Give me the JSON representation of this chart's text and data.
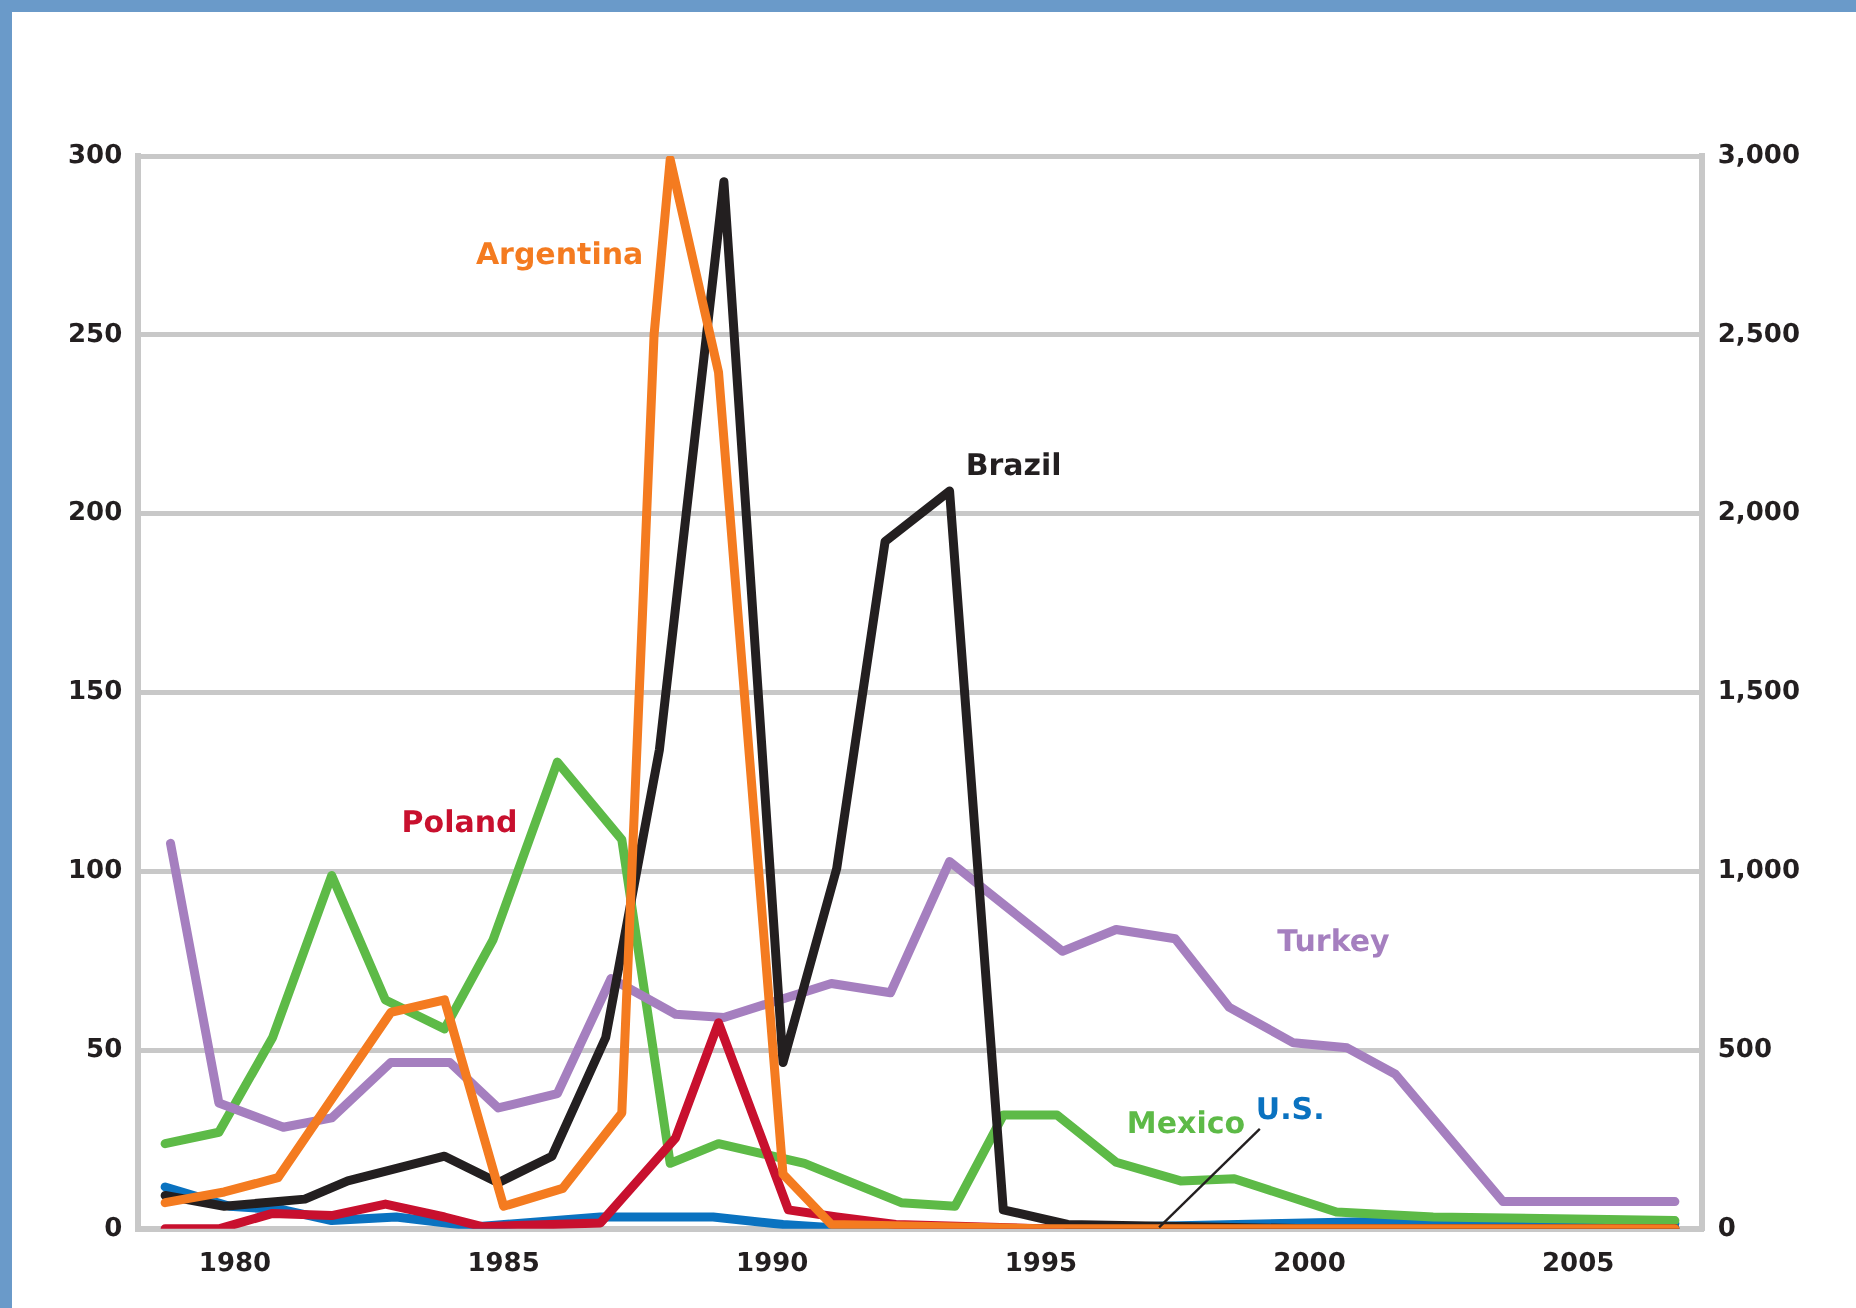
{
  "chart_data": {
    "type": "line",
    "xlim": [
      1978.2,
      2007.3
    ],
    "xticks": [
      1980,
      1985,
      1990,
      1995,
      2000,
      2005
    ],
    "ylim": [
      0,
      300
    ],
    "yticks": [
      0,
      50,
      100,
      150,
      200,
      250,
      300
    ],
    "y2lim": [
      0,
      3000
    ],
    "y2ticks": [
      0,
      {
        "value": 500,
        "label": "500"
      },
      {
        "value": 1000,
        "label": "1,000"
      },
      {
        "value": 1500,
        "label": "1,500"
      },
      {
        "value": 2000,
        "label": "2,000"
      },
      {
        "value": 2500,
        "label": "2,500"
      },
      {
        "value": 3000,
        "label": "3,000"
      }
    ],
    "grid": "y",
    "legend": false,
    "marker": "none",
    "series": [
      {
        "name": "Argentina",
        "color": "#f47b20",
        "axis": "y2",
        "x": [
          1978.7,
          1979.8,
          1980.8,
          1982.9,
          1983.9,
          1985.0,
          1986.1,
          1987.2,
          1987.8,
          1988.1,
          1989.0,
          1990.2,
          1991.1,
          1995.0,
          2000.0,
          2006.8
        ],
        "values": [
          73,
          103,
          143,
          605,
          640,
          63,
          113,
          324,
          2500,
          2990,
          2395,
          153,
          12,
          0,
          0,
          0
        ]
      },
      {
        "name": "Brazil",
        "color": "#231f20",
        "axis": "y2",
        "x": [
          1978.7,
          1979.8,
          1981.3,
          1982.1,
          1983.9,
          1984.9,
          1985.9,
          1986.9,
          1987.9,
          1989.1,
          1990.2,
          1991.2,
          1992.1,
          1993.3,
          1994.3,
          1995.5,
          2000.0,
          2006.8
        ],
        "values": [
          93,
          63,
          83,
          134,
          203,
          129,
          203,
          535,
          1340,
          2928,
          465,
          1008,
          1922,
          2063,
          53,
          12,
          0,
          0
        ]
      },
      {
        "name": "Poland",
        "color": "#c8102e",
        "axis": "y2",
        "x": [
          1978.7,
          1979.7,
          1980.7,
          1981.8,
          1982.8,
          1983.9,
          1984.6,
          1986.8,
          1988.2,
          1989.0,
          1990.3,
          1991.2,
          1992.3,
          1995.0,
          2000.0,
          2006.8
        ],
        "values": [
          0,
          0,
          43,
          37,
          69,
          33,
          6,
          16,
          254,
          576,
          53,
          33,
          12,
          0,
          0,
          0
        ]
      },
      {
        "name": "Turkey",
        "color": "#a57fbf",
        "x": [
          1978.8,
          1979.7,
          1980.9,
          1981.8,
          1982.9,
          1984.0,
          1984.9,
          1986.0,
          1987.0,
          1988.2,
          1989.1,
          1991.1,
          1992.2,
          1993.3,
          1995.4,
          1996.4,
          1997.5,
          1998.5,
          1999.7,
          2000.7,
          2001.6,
          2003.6,
          2006.8
        ],
        "values": [
          107.8,
          35.2,
          28.4,
          31,
          46.5,
          46.5,
          33.8,
          37.8,
          70,
          60,
          59.1,
          68.6,
          66,
          102.7,
          77.6,
          83.7,
          81.1,
          62,
          52,
          50.6,
          43.2,
          7.6,
          7.6
        ]
      },
      {
        "name": "Mexico",
        "color": "#5dba47",
        "x": [
          1978.7,
          1979.7,
          1980.7,
          1981.8,
          1982.8,
          1983.9,
          1984.8,
          1986.0,
          1987.2,
          1988.1,
          1989.0,
          1990.6,
          1992.4,
          1993.4,
          1994.3,
          1995.3,
          1996.4,
          1997.6,
          1998.6,
          2000.5,
          2002.3,
          2006.8
        ],
        "values": [
          23.8,
          27,
          53.5,
          98.8,
          64,
          55.9,
          80.7,
          130.5,
          108.8,
          18.3,
          23.8,
          18.3,
          7.3,
          6.3,
          31.8,
          31.8,
          18.6,
          13.4,
          14,
          4.7,
          3.3,
          2.3
        ]
      },
      {
        "name": "U.S.",
        "color": "#0a72c0",
        "x": [
          1978.7,
          1979.9,
          1980.9,
          1981.8,
          1983.0,
          1984.5,
          1986.8,
          1988.9,
          1990.2,
          1991.2,
          1995.0,
          2001.0,
          2006.8
        ],
        "values": [
          11.7,
          6.3,
          5.3,
          2.3,
          3.3,
          0.6,
          3.3,
          3.3,
          1.2,
          0.2,
          0,
          2,
          1.5
        ]
      }
    ]
  }
}
